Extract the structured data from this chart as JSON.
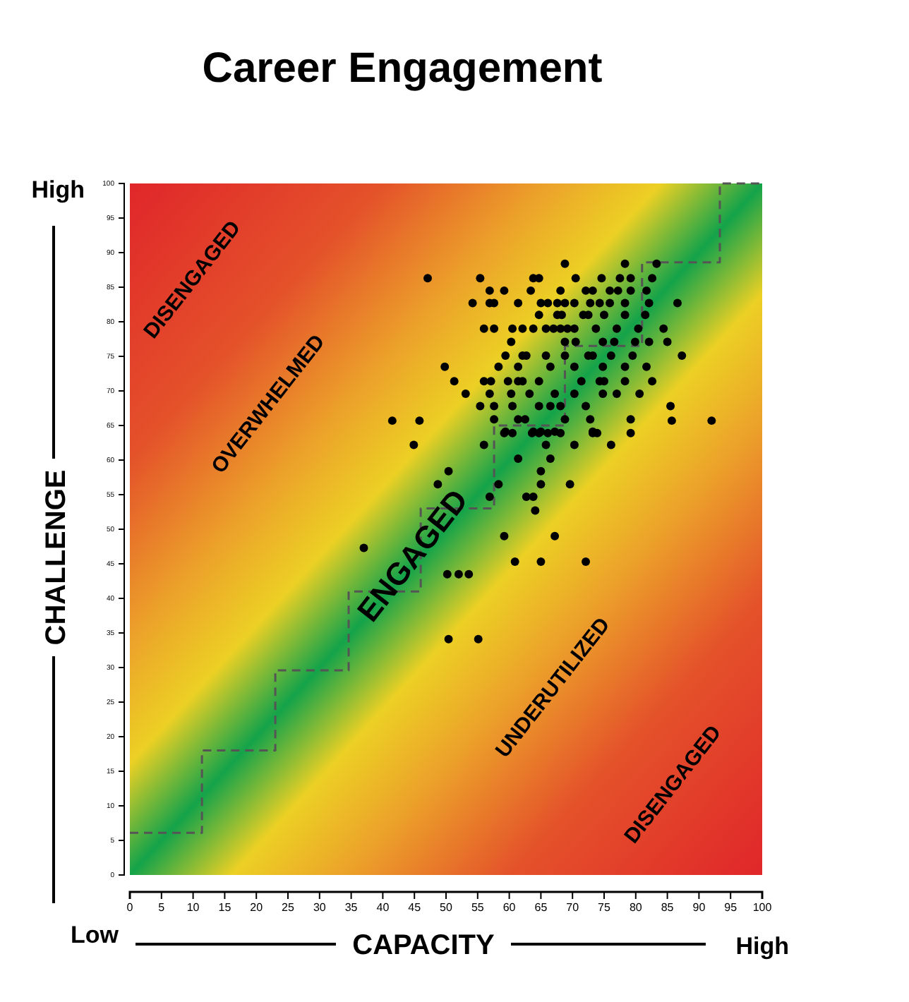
{
  "chart_data": {
    "type": "scatter",
    "title": "Career Engagement",
    "xlabel": "CAPACITY",
    "ylabel": "CHALLENGE",
    "xlim": [
      0,
      100
    ],
    "ylim": [
      0,
      100
    ],
    "xticks": [
      0,
      5,
      10,
      15,
      20,
      25,
      30,
      35,
      40,
      45,
      50,
      55,
      60,
      65,
      70,
      75,
      80,
      85,
      90,
      95,
      100
    ],
    "yticks": [
      0,
      5,
      10,
      15,
      20,
      25,
      30,
      35,
      40,
      45,
      50,
      55,
      60,
      65,
      70,
      75,
      80,
      85,
      90,
      95,
      100
    ],
    "grid": false,
    "annotations": [
      "High",
      "Low",
      "High",
      "DISENGAGED",
      "OVERWHELMED",
      "ENGAGED",
      "UNDERUTILIZED",
      "DISENGAGED"
    ],
    "series": [
      {
        "type": "step",
        "color": "#555555",
        "line_style": "dashed",
        "marker": "none",
        "x": [
          0,
          11.4,
          23,
          34.6,
          46,
          57.6,
          68.8,
          81,
          93.3,
          100
        ],
        "values": [
          6.1,
          18,
          29.6,
          41,
          53,
          65,
          76.5,
          88.6,
          100,
          100
        ]
      },
      {
        "color": "#000000",
        "marker": "circle",
        "x": [
          68.8,
          78.3,
          83.3,
          47.1,
          55.4,
          63.8,
          64.7,
          70.5,
          74.6,
          77.5,
          79.2,
          82.6,
          56.9,
          59.2,
          63.4,
          68.1,
          72.1,
          73.2,
          75.9,
          77.2,
          79.2,
          81.7,
          54.2,
          56.9,
          57.6,
          61.4,
          65,
          66.1,
          67.6,
          68.8,
          70.3,
          72.8,
          74.3,
          75.9,
          78.3,
          82.1,
          86.6,
          64.7,
          67.6,
          68.3,
          71.7,
          72.5,
          75,
          78.3,
          81.5,
          56,
          57.6,
          60.5,
          62.1,
          63.8,
          65.8,
          67,
          68.1,
          69.2,
          70.3,
          73.7,
          77,
          80.4,
          84.4,
          60.3,
          68.8,
          70.5,
          74.8,
          76.6,
          79.9,
          82.1,
          85,
          59.4,
          62.1,
          62.7,
          65.8,
          68.8,
          72.5,
          73.2,
          76.1,
          79.5,
          87.3,
          49.8,
          58.3,
          61.4,
          66.5,
          70.3,
          74.8,
          78.3,
          81.7,
          51.3,
          56,
          57.1,
          59.8,
          61.4,
          62.1,
          64.7,
          71.4,
          74.3,
          75,
          78.3,
          82.6,
          53.1,
          56.9,
          60.3,
          63.2,
          67.2,
          70.3,
          74.8,
          77,
          80.6,
          55.4,
          57.6,
          60.5,
          64.7,
          66.5,
          68.1,
          72.1,
          85.5,
          57.6,
          61.4,
          62.5,
          68.8,
          72.8,
          79.2,
          59.4,
          63.8,
          65,
          67.2,
          73.2,
          41.5,
          45.8,
          85.7,
          92,
          59.2,
          60.5,
          63.6,
          64.7,
          66.1,
          68.1,
          73.2,
          73.9,
          79.2,
          44.9,
          56,
          65.8,
          70.3,
          76.1,
          61.4,
          66.5,
          50.4,
          65,
          48.7,
          58.3,
          65,
          69.6,
          56.9,
          62.7,
          63.8,
          64.1,
          59.2,
          67.2,
          60.9,
          65,
          72.1,
          50.2,
          52,
          53.6,
          50.4,
          55.1,
          37
        ],
        "values": [
          88.4,
          88.4,
          88.4,
          86.3,
          86.3,
          86.3,
          86.3,
          86.3,
          86.3,
          86.3,
          86.3,
          86.3,
          84.5,
          84.5,
          84.5,
          84.5,
          84.5,
          84.5,
          84.5,
          84.5,
          84.5,
          84.5,
          82.7,
          82.7,
          82.7,
          82.7,
          82.7,
          82.7,
          82.7,
          82.7,
          82.7,
          82.7,
          82.7,
          82.7,
          82.7,
          82.7,
          82.7,
          81,
          81,
          81,
          81,
          81,
          81,
          81,
          81,
          79,
          79,
          79,
          79,
          79,
          79,
          79,
          79,
          79,
          79,
          79,
          79,
          79,
          79,
          77.1,
          77.1,
          77.1,
          77.1,
          77.1,
          77.1,
          77.1,
          77.1,
          75.1,
          75.1,
          75.1,
          75.1,
          75.1,
          75.1,
          75.1,
          75.1,
          75.1,
          75.1,
          73.5,
          73.5,
          73.5,
          73.5,
          73.5,
          73.5,
          73.5,
          73.5,
          71.4,
          71.4,
          71.4,
          71.4,
          71.4,
          71.4,
          71.4,
          71.4,
          71.4,
          71.4,
          71.4,
          71.4,
          69.6,
          69.6,
          69.6,
          69.6,
          69.6,
          69.6,
          69.6,
          69.6,
          69.6,
          67.8,
          67.8,
          67.8,
          67.8,
          67.8,
          67.8,
          67.8,
          67.8,
          65.9,
          65.9,
          65.9,
          65.9,
          65.9,
          65.9,
          64.1,
          64.1,
          64.1,
          64.1,
          64.1,
          65.7,
          65.7,
          65.7,
          65.7,
          63.9,
          63.9,
          63.9,
          63.9,
          63.9,
          63.9,
          63.9,
          63.9,
          63.9,
          62.2,
          62.2,
          62.2,
          62.2,
          62.2,
          60.2,
          60.2,
          58.4,
          58.4,
          56.5,
          56.5,
          56.5,
          56.5,
          54.7,
          54.7,
          54.7,
          52.7,
          49,
          49,
          45.3,
          45.3,
          45.3,
          43.5,
          43.5,
          43.5,
          34.1,
          34.1,
          47.3
        ]
      }
    ]
  }
}
